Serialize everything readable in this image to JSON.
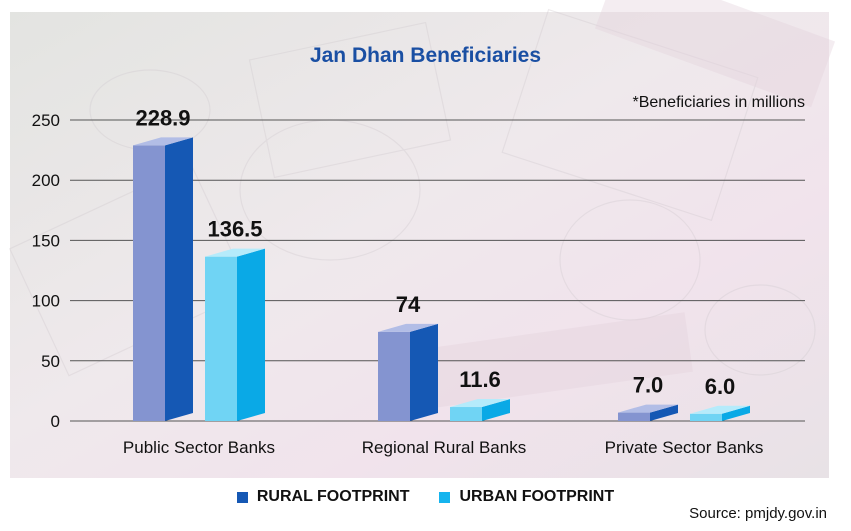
{
  "header": {
    "title": "Jan Dhan Beneficiaries",
    "note": "*Beneficiaries in millions",
    "source": "Source: pmjdy.gov.in"
  },
  "legend": {
    "rural": "RURAL FOOTPRINT",
    "urban": "URBAN FOOTPRINT"
  },
  "colors": {
    "title": "#1a4fa3",
    "rural_front": "#8494d0",
    "rural_side": "#1558b4",
    "rural_top": "#b2bde6",
    "rural_legend": "#1558b4",
    "urban_front": "#70d4f4",
    "urban_side": "#0aa9e6",
    "urban_top": "#b5ebfb",
    "urban_legend": "#15b4ee",
    "grid": "#555555"
  },
  "chart_data": {
    "type": "bar",
    "title": "Jan Dhan Beneficiaries",
    "xlabel": "",
    "ylabel": "",
    "ylim": [
      0,
      250
    ],
    "yticks": [
      "0",
      "50",
      "100",
      "150",
      "200",
      "250"
    ],
    "grid": true,
    "legend_position": "bottom",
    "categories": [
      "Public Sector Banks",
      "Regional Rural Banks",
      "Private Sector Banks"
    ],
    "series": [
      {
        "name": "RURAL FOOTPRINT",
        "values": [
          228.9,
          74,
          7.0
        ],
        "labels": [
          "228.9",
          "74",
          "7.0"
        ]
      },
      {
        "name": "URBAN FOOTPRINT",
        "values": [
          136.5,
          11.6,
          6.0
        ],
        "labels": [
          "136.5",
          "11.6",
          "6.0"
        ]
      }
    ]
  }
}
